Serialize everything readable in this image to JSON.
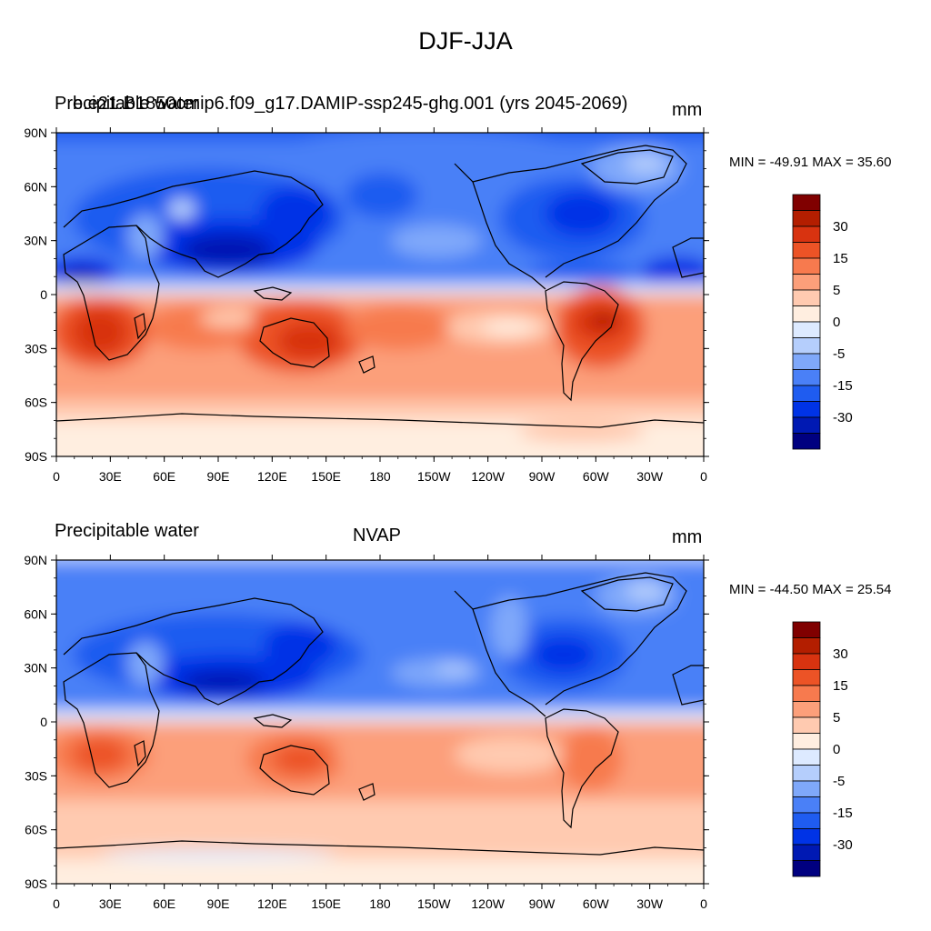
{
  "title": "DJF-JJA",
  "colors": {
    "levels": [
      "#000080",
      "#0019B3",
      "#0033E6",
      "#1F5CF0",
      "#4A80F7",
      "#7FA8FA",
      "#B5CEFC",
      "#DDEAFF",
      "#FFEEE0",
      "#FFCAB0",
      "#FC9F7A",
      "#F77A4E",
      "#EC5326",
      "#D83310",
      "#B31E00",
      "#800000"
    ]
  },
  "panels": [
    {
      "id": "top",
      "left_title": "Precipitable water",
      "center_title": "b.e21.B1850cmip6.f09_g17.DAMIP-ssp245-ghg.001 (yrs 2045-2069)",
      "units": "mm",
      "minmax": "MIN = -49.91 MAX =  35.60"
    },
    {
      "id": "bottom",
      "left_title": "Precipitable water",
      "center_title": "NVAP",
      "units": "mm",
      "minmax": "MIN = -44.50 MAX =  25.54"
    }
  ],
  "axes": {
    "lat_labels": [
      "90N",
      "60N",
      "30N",
      "0",
      "30S",
      "60S",
      "90S"
    ],
    "lon_labels": [
      "0",
      "30E",
      "60E",
      "90E",
      "120E",
      "150E",
      "180",
      "150W",
      "120W",
      "90W",
      "60W",
      "30W",
      "0"
    ]
  },
  "colorbar_labels": [
    "30",
    "15",
    "5",
    "0",
    "-5",
    "-15",
    "-30"
  ]
}
